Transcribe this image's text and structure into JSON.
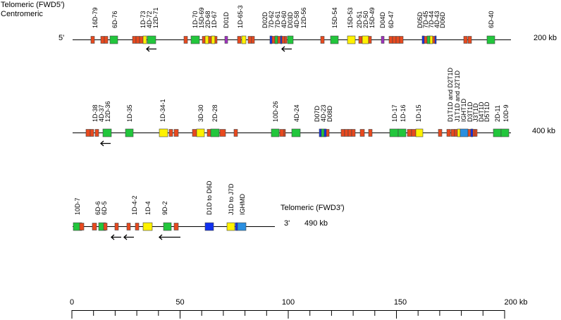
{
  "header": {
    "left_top": "Telomeric (FWD5')",
    "left_bottom": "Centromeric",
    "five_prime": "5'"
  },
  "colors": {
    "red": "#e8491e",
    "green": "#22c63c",
    "yellow": "#fff200",
    "purple": "#a030c0",
    "blue": "#1030f0",
    "lightblue": "#2a8fe0"
  },
  "rows": [
    {
      "end_label": "200 kb",
      "segments": [
        "16D-79",
        "6D-76",
        "1D-73",
        "4D-72",
        "12D-71",
        "1D-70",
        "15D-69",
        "2D-68",
        "1D-67",
        "D01D",
        "1D-65-3",
        "D02D",
        "7D-62",
        "7D-61",
        "4D-60",
        "D03D",
        "4D-58",
        "12D-56",
        "15D-54",
        "15D-53",
        "2D-51",
        "2D-50",
        "15D-49",
        "D04D",
        "6D-47",
        "D05D",
        "7D-45",
        "7D-44",
        "4D-43",
        "D06D",
        "6D-40"
      ]
    },
    {
      "end_label": "400 kb",
      "segments": [
        "1D-38",
        "4D-37",
        "12D-36",
        "1D-35",
        "1D-34-1",
        "3D-30",
        "2D-28",
        "10D-26",
        "4D-24",
        "D07D",
        "4D-23",
        "D08D",
        "1D-17",
        "1D-16",
        "1D-15",
        "D1T1D and D2T1D",
        "J1T1D and J2T1D",
        "IGHT1D",
        "D3T1D",
        "J3T1D",
        "D4T1D",
        "D5T1D",
        "2D-11",
        "10D-9"
      ]
    },
    {
      "end_label": "490 kb",
      "three_prime": "3'",
      "telomeric_label": "Telomeric (FWD3')",
      "segments": [
        "10D-7",
        "6D-6",
        "6D-5",
        "1D-4-2",
        "1D-4",
        "9D-2",
        "D1D to D6D",
        "J1D to J7D",
        "IGHMD"
      ]
    }
  ],
  "axis": {
    "ticks": [
      "0",
      "50",
      "100",
      "150"
    ],
    "end_label": "200 kb"
  }
}
